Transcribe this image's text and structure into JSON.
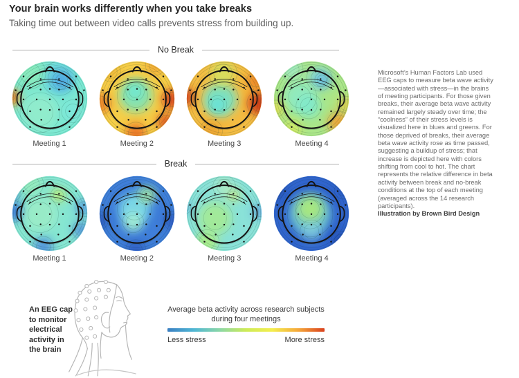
{
  "header": {
    "title": "Your brain works differently when you take breaks",
    "subtitle": "Taking time out between video calls prevents stress from building up."
  },
  "sidebar": {
    "body": "Microsoft’s Human Factors Lab used EEG caps to measure beta wave activity—associated with stress—in the brains of meeting participants. For those given breaks, their average beta wave activity remained largely steady over time; the “coolness” of their stress levels is visualized here in blues and greens. For those deprived of breaks, their average beta wave activity rose as time passed, suggesting a buildup of stress; that increase is depicted here with colors shifting from cool to hot. The chart represents the relative difference in beta activity between break and no-break conditions at the top of each meeting (averaged across the 14 research participants).",
    "credit": "Illustration by Brown Bird Design"
  },
  "eeg_cap": {
    "lines": [
      "An EEG cap",
      "to monitor",
      "electrical",
      "activity in",
      "the brain"
    ]
  },
  "legend": {
    "title_line1": "Average beta activity across research subjects",
    "title_line2": "during four meetings",
    "min_label": "Less stress",
    "max_label": "More stress",
    "gradient": [
      "#3a7fc2",
      "#4fb6d4",
      "#8bd7a6",
      "#cdeb58",
      "#f4ee4e",
      "#f5a73a",
      "#d9411d"
    ]
  },
  "chart_data": {
    "type": "heatmap",
    "title": "Your brain works differently when you take breaks",
    "subtitle": "Taking time out between video calls prevents stress from building up.",
    "legend": "Average beta activity across research subjects during four meetings (Less stress → More stress)",
    "participants": 14,
    "conditions": [
      {
        "label": "No Break",
        "meetings": [
          {
            "label": "Meeting 1",
            "stress": "low",
            "base": "#7ce9d3",
            "blobs": [
              [
                78,
                33,
                13,
                "#2e6fd8",
                1
              ],
              [
                74,
                30,
                24,
                "#5fc4e6",
                0.65
              ],
              [
                2,
                60,
                13,
                "#f59a28",
                0.95
              ],
              [
                0,
                56,
                7,
                "#e2591d",
                1
              ],
              [
                30,
                22,
                22,
                "#8deab5",
                0.7
              ],
              [
                45,
                82,
                28,
                "#97ecca",
                0.75
              ],
              [
                95,
                80,
                16,
                "#7ee6de",
                0.6
              ]
            ]
          },
          {
            "label": "Meeting 2",
            "stress": "high",
            "base": "#f6ce48",
            "blobs": [
              [
                58,
                56,
                26,
                "#86e2ae",
                0.95
              ],
              [
                57,
                50,
                13,
                "#6ee8d6",
                0.9
              ],
              [
                4,
                68,
                16,
                "#f08426",
                0.95
              ],
              [
                114,
                62,
                16,
                "#de4a1e",
                0.95
              ],
              [
                104,
                96,
                14,
                "#e0561e",
                0.9
              ],
              [
                58,
                114,
                16,
                "#ea6a20",
                0.85
              ],
              [
                88,
                10,
                14,
                "#f2a630",
                0.9
              ],
              [
                20,
                20,
                14,
                "#f4b838",
                0.8
              ]
            ]
          },
          {
            "label": "Meeting 3",
            "stress": "high",
            "base": "#f4bc42",
            "blobs": [
              [
                54,
                62,
                26,
                "#7ce2c2",
                0.95
              ],
              [
                50,
                70,
                13,
                "#66e2da",
                0.9
              ],
              [
                0,
                58,
                14,
                "#d63f1a",
                0.95
              ],
              [
                114,
                68,
                18,
                "#cf3a16",
                0.95
              ],
              [
                108,
                34,
                13,
                "#ec7e22",
                0.9
              ],
              [
                58,
                22,
                20,
                "#cfe968",
                0.7
              ],
              [
                40,
                110,
                16,
                "#eea22e",
                0.8
              ]
            ]
          },
          {
            "label": "Meeting 4",
            "stress": "moderate",
            "base": "#abe689",
            "blobs": [
              [
                76,
                32,
                10,
                "#3c8ede",
                1
              ],
              [
                72,
                30,
                18,
                "#7cd4ea",
                0.65
              ],
              [
                42,
                58,
                24,
                "#8feac2",
                0.9
              ],
              [
                56,
                72,
                18,
                "#7ee9cf",
                0.8
              ],
              [
                102,
                98,
                17,
                "#f2a032",
                0.9
              ],
              [
                112,
                70,
                12,
                "#ecc83e",
                0.8
              ],
              [
                6,
                76,
                12,
                "#e9dc4a",
                0.85
              ],
              [
                30,
                108,
                15,
                "#d8ea5c",
                0.8
              ],
              [
                30,
                16,
                16,
                "#9cead2",
                0.7
              ]
            ]
          }
        ]
      },
      {
        "label": "Break",
        "meetings": [
          {
            "label": "Meeting 1",
            "stress": "low",
            "base": "#86e6d2",
            "blobs": [
              [
                6,
                58,
                15,
                "#3f7ad8",
                0.95
              ],
              [
                2,
                30,
                12,
                "#57a0e0",
                0.8
              ],
              [
                112,
                52,
                13,
                "#5aa2e2",
                0.9
              ],
              [
                108,
                86,
                13,
                "#4f8edc",
                0.85
              ],
              [
                50,
                112,
                15,
                "#4f8edc",
                0.9
              ],
              [
                73,
                33,
                11,
                "#bcea6e",
                0.95
              ],
              [
                45,
                62,
                26,
                "#9cecc6",
                0.85
              ],
              [
                32,
                16,
                17,
                "#98ecba",
                0.8
              ]
            ]
          },
          {
            "label": "Meeting 2",
            "stress": "low",
            "base": "#3f7ed9",
            "blobs": [
              [
                56,
                54,
                24,
                "#7fdce8",
                0.95
              ],
              [
                54,
                74,
                15,
                "#a4eed2",
                0.9
              ],
              [
                76,
                33,
                8,
                "#dcee6a",
                1
              ],
              [
                74,
                32,
                14,
                "#90e2ba",
                0.75
              ],
              [
                2,
                72,
                13,
                "#2a56bc",
                0.9
              ],
              [
                114,
                72,
                13,
                "#2d5ac2",
                0.9
              ],
              [
                58,
                116,
                14,
                "#2d5ac2",
                0.8
              ]
            ]
          },
          {
            "label": "Meeting 3",
            "stress": "low",
            "base": "#8ae2d8",
            "blobs": [
              [
                74,
                33,
                9,
                "#d6ee70",
                0.95
              ],
              [
                46,
                68,
                25,
                "#a6ea90",
                0.85
              ],
              [
                34,
                104,
                17,
                "#aeee84",
                0.9
              ],
              [
                114,
                58,
                11,
                "#5e9fe2",
                0.85
              ],
              [
                0,
                52,
                9,
                "#62aae4",
                0.8
              ],
              [
                60,
                20,
                16,
                "#baeec0",
                0.6
              ]
            ]
          },
          {
            "label": "Meeting 4",
            "stress": "low",
            "base": "#3064cd",
            "blobs": [
              [
                58,
                62,
                32,
                "#7cd8d2",
                0.8
              ],
              [
                58,
                54,
                20,
                "#a9e87e",
                0.95
              ],
              [
                60,
                88,
                16,
                "#8fd8e2",
                0.55
              ],
              [
                6,
                26,
                12,
                "#2148ae",
                0.85
              ],
              [
                104,
                102,
                13,
                "#2148ae",
                0.75
              ],
              [
                108,
                26,
                12,
                "#2a58c4",
                0.7
              ]
            ]
          }
        ]
      }
    ]
  }
}
